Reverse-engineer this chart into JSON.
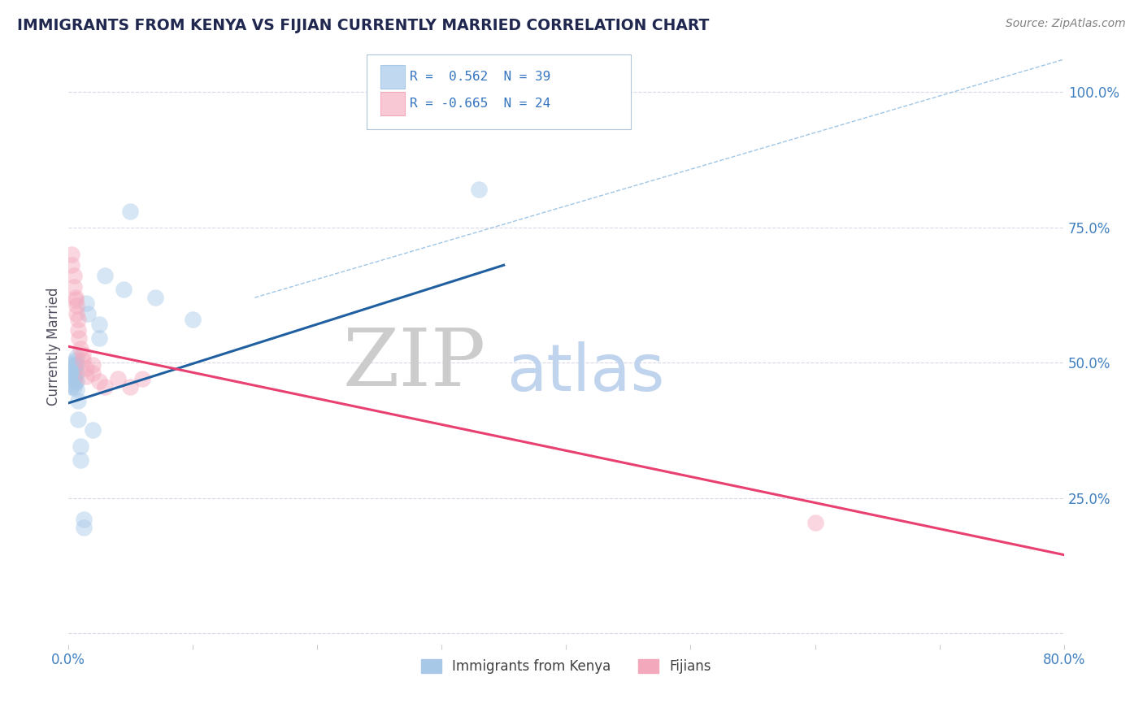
{
  "title": "IMMIGRANTS FROM KENYA VS FIJIAN CURRENTLY MARRIED CORRELATION CHART",
  "source": "Source: ZipAtlas.com",
  "ylabel": "Currently Married",
  "watermark_zip": "ZIP",
  "watermark_atlas": "atlas",
  "watermark_zip_color": "#cccccc",
  "watermark_atlas_color": "#c0d4ee",
  "xlim": [
    0.0,
    0.8
  ],
  "ylim": [
    -0.02,
    1.08
  ],
  "blue_scatter": [
    [
      0.002,
      0.475
    ],
    [
      0.002,
      0.455
    ],
    [
      0.003,
      0.49
    ],
    [
      0.003,
      0.48
    ],
    [
      0.004,
      0.495
    ],
    [
      0.004,
      0.485
    ],
    [
      0.004,
      0.47
    ],
    [
      0.004,
      0.46
    ],
    [
      0.005,
      0.5
    ],
    [
      0.005,
      0.49
    ],
    [
      0.005,
      0.48
    ],
    [
      0.005,
      0.47
    ],
    [
      0.005,
      0.455
    ],
    [
      0.006,
      0.505
    ],
    [
      0.006,
      0.495
    ],
    [
      0.006,
      0.48
    ],
    [
      0.006,
      0.465
    ],
    [
      0.007,
      0.51
    ],
    [
      0.007,
      0.495
    ],
    [
      0.007,
      0.48
    ],
    [
      0.007,
      0.465
    ],
    [
      0.007,
      0.45
    ],
    [
      0.008,
      0.43
    ],
    [
      0.008,
      0.395
    ],
    [
      0.01,
      0.345
    ],
    [
      0.01,
      0.32
    ],
    [
      0.013,
      0.21
    ],
    [
      0.013,
      0.195
    ],
    [
      0.015,
      0.61
    ],
    [
      0.016,
      0.59
    ],
    [
      0.02,
      0.375
    ],
    [
      0.025,
      0.57
    ],
    [
      0.025,
      0.545
    ],
    [
      0.03,
      0.66
    ],
    [
      0.045,
      0.635
    ],
    [
      0.05,
      0.78
    ],
    [
      0.07,
      0.62
    ],
    [
      0.1,
      0.58
    ],
    [
      0.33,
      0.82
    ]
  ],
  "pink_scatter": [
    [
      0.003,
      0.7
    ],
    [
      0.003,
      0.68
    ],
    [
      0.005,
      0.66
    ],
    [
      0.005,
      0.64
    ],
    [
      0.006,
      0.62
    ],
    [
      0.006,
      0.615
    ],
    [
      0.007,
      0.605
    ],
    [
      0.007,
      0.59
    ],
    [
      0.008,
      0.58
    ],
    [
      0.008,
      0.56
    ],
    [
      0.009,
      0.545
    ],
    [
      0.01,
      0.525
    ],
    [
      0.012,
      0.515
    ],
    [
      0.012,
      0.505
    ],
    [
      0.015,
      0.49
    ],
    [
      0.015,
      0.475
    ],
    [
      0.02,
      0.495
    ],
    [
      0.02,
      0.48
    ],
    [
      0.025,
      0.465
    ],
    [
      0.03,
      0.455
    ],
    [
      0.04,
      0.47
    ],
    [
      0.05,
      0.455
    ],
    [
      0.06,
      0.47
    ],
    [
      0.6,
      0.205
    ]
  ],
  "blue_line_x": [
    0.0,
    0.35
  ],
  "blue_line_y": [
    0.425,
    0.68
  ],
  "pink_line_x": [
    0.0,
    0.8
  ],
  "pink_line_y": [
    0.53,
    0.145
  ],
  "diag_line_x": [
    0.15,
    0.8
  ],
  "diag_line_y": [
    0.62,
    1.06
  ],
  "blue_scatter_color": "#a8c8e8",
  "pink_scatter_color": "#f4a8bc",
  "blue_line_color": "#2060a0",
  "pink_line_color": "#e84070",
  "diag_line_color": "#88b8e0",
  "grid_color": "#d8d8e8",
  "background_color": "#ffffff",
  "title_color": "#202850",
  "source_color": "#808080",
  "legend_box_color": "#c8d8e8",
  "axis_label_color": "#4080c0"
}
